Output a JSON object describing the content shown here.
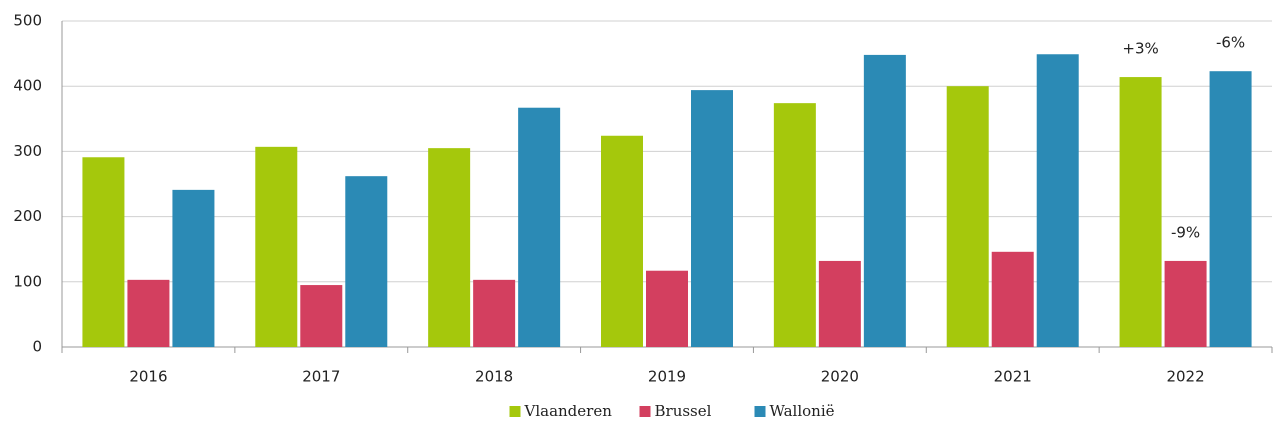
{
  "chart_data": {
    "type": "bar",
    "categories": [
      "2016",
      "2017",
      "2018",
      "2019",
      "2020",
      "2021",
      "2022"
    ],
    "series": [
      {
        "name": "Vlaanderen",
        "color": "#a5c80c",
        "values": [
          291,
          307,
          305,
          324,
          374,
          400,
          414
        ]
      },
      {
        "name": "Brussel",
        "color": "#d33f5f",
        "values": [
          103,
          95,
          103,
          117,
          132,
          146,
          132
        ]
      },
      {
        "name": "Wallonië",
        "color": "#2b8ab5",
        "values": [
          241,
          262,
          367,
          394,
          448,
          449,
          423
        ]
      }
    ],
    "ylim": [
      0,
      500
    ],
    "yticks": [
      0,
      100,
      200,
      300,
      400,
      500
    ],
    "grid": true,
    "legend": "bottom",
    "annotations": [
      {
        "text": "+3%",
        "series": "Vlaanderen",
        "category": "2022"
      },
      {
        "text": "-9%",
        "series": "Brussel",
        "category": "2022"
      },
      {
        "text": "-6%",
        "series": "Wallonië",
        "category": "2022"
      }
    ]
  }
}
